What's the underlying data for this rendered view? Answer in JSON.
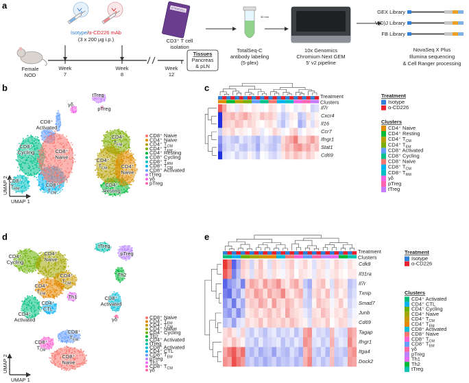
{
  "panel_labels": {
    "a": "a",
    "b": "b",
    "c": "c",
    "d": "d",
    "e": "e"
  },
  "panel_a": {
    "treatment_label": {
      "isotype": "Isotype",
      "sep": "/",
      "anti": "α-CD226 mAb"
    },
    "dose": "(3 x 200 µg i.p.)",
    "mouse": [
      "Female",
      "NOD"
    ],
    "weeks": [
      [
        "Week",
        "7"
      ],
      [
        "Week",
        "8"
      ],
      [
        "Week",
        "12"
      ]
    ],
    "kit_brand": "STEMCELL",
    "isolation": [
      "CD3⁺ T cell",
      "isolation"
    ],
    "tissues": {
      "title": "Tissues",
      "lines": [
        "Pancreas",
        "& pLN"
      ]
    },
    "tube_label": "30 min",
    "labeling": [
      "TotalSeq-C",
      "antibody labeling",
      "(5-plex)"
    ],
    "pipeline": [
      "10x Genomics",
      "Chromium Next GEM",
      "5′ v2 pipeline"
    ],
    "libraries": [
      "GEX Library",
      "V(D)J Library",
      "FB Library"
    ],
    "sequencing": [
      "NovaSeq X Plus",
      "Illumina sequencing",
      "& Cell Ranger processing"
    ]
  },
  "umap_b": {
    "x_label": "UMAP 1",
    "y_label": "UMAP 2",
    "clusters": [
      {
        "name": "CD8⁺ Naive",
        "color": "#F8766D"
      },
      {
        "name": "CD4⁺ Naive",
        "color": "#DE8C00"
      },
      {
        "name": "CD4⁺ T",
        "sub": "CM",
        "color": "#B79F00"
      },
      {
        "name": "CD4⁺ T",
        "sub": "EM",
        "color": "#7CAE00"
      },
      {
        "name": "CD4⁺ Resting",
        "color": "#00BA38"
      },
      {
        "name": "CD8⁺ Cycling",
        "color": "#00C08B"
      },
      {
        "name": "CD8⁺ T",
        "sub": "RM",
        "color": "#00BFC4"
      },
      {
        "name": "CD8⁺ T",
        "sub": "CM",
        "color": "#00B4F0"
      },
      {
        "name": "CD8⁺ Activated",
        "color": "#619CFF"
      },
      {
        "name": "tTreg",
        "color": "#C77CFF"
      },
      {
        "name": "γδ",
        "color": "#F564E3"
      },
      {
        "name": "pTreg",
        "color": "#FF64B0"
      }
    ],
    "plot_labels": [
      {
        "l1": "γδ"
      },
      {
        "l1": "tTreg"
      },
      {
        "l1": "pTreg"
      },
      {
        "l1": "CD8⁺",
        "l2": "Activated"
      },
      {
        "l1": "CD8⁺",
        "l2": "Cycling"
      },
      {
        "l1": "CD8⁺",
        "l2": "Naive"
      },
      {
        "l1": "CD8⁺",
        "l2": "T",
        "sub": "RM"
      },
      {
        "l1": "CD8⁺",
        "l2": "T",
        "sub": "CM"
      },
      {
        "l1": "CD4⁺",
        "l2": "T",
        "sub": "EM"
      },
      {
        "l1": "CD4⁺",
        "l2": "T",
        "sub": "CM"
      },
      {
        "l1": "CD4⁺",
        "l2": "Naive"
      },
      {
        "l1": "CD4⁺",
        "l2": "Resting"
      }
    ]
  },
  "heatmap_c": {
    "annotation_labels": [
      "Treatment",
      "Clusters"
    ],
    "treatment_title": "Treatment",
    "clusters_title": "Clusters",
    "treatments": [
      {
        "name": "Isotype",
        "color": "#2f80d8"
      },
      {
        "name": "α-CD226",
        "color": "#e8232d"
      }
    ],
    "clusters": [
      {
        "name": "CD4⁺ Naive",
        "color": "#DE8C00"
      },
      {
        "name": "CD4⁺ Resting",
        "color": "#00BA38"
      },
      {
        "name": "CD4⁺ T",
        "sub": "CM",
        "color": "#B79F00"
      },
      {
        "name": "CD4⁺ T",
        "sub": "EM",
        "color": "#7CAE00"
      },
      {
        "name": "CD8⁺ Activated",
        "color": "#619CFF"
      },
      {
        "name": "CD8⁺ Cycling",
        "color": "#00C08B"
      },
      {
        "name": "CD8⁺ Naive",
        "color": "#F8766D"
      },
      {
        "name": "CD8⁺ T",
        "sub": "CM",
        "color": "#00B4F0"
      },
      {
        "name": "CD8⁺ T",
        "sub": "RM",
        "color": "#00BFC4"
      },
      {
        "name": "γδ",
        "color": "#F564E3"
      },
      {
        "name": "pTreg",
        "color": "#FF64B0"
      },
      {
        "name": "tTreg",
        "color": "#C77CFF"
      }
    ],
    "genes": [
      "Il7r",
      "Cxcr4",
      "Il16",
      "Ccr7",
      "Ifngr1",
      "Stat1",
      "Cd69"
    ],
    "column_treatment": [
      0,
      1,
      0,
      1,
      0,
      1,
      0,
      1,
      0,
      1,
      0,
      1,
      0,
      1,
      0,
      1,
      0,
      1,
      0,
      1,
      0,
      1,
      0,
      1
    ],
    "column_cluster": [
      0,
      0,
      1,
      1,
      2,
      2,
      3,
      3,
      4,
      4,
      5,
      5,
      6,
      6,
      7,
      7,
      8,
      8,
      9,
      9,
      10,
      10,
      11,
      11
    ],
    "zlim": [
      -2,
      2
    ],
    "low_color": "#1f2fe0",
    "mid_color": "#ffffff",
    "high_color": "#e8231f",
    "values": [
      [
        1.5,
        0.8,
        0.2,
        0.1,
        -0.2,
        0.3,
        0.1,
        0,
        0.2,
        0.1,
        -0.1,
        0,
        0.3,
        0.2,
        0,
        -0.3,
        0.1,
        0,
        -0.2,
        -0.1,
        0.2,
        0,
        -0.4,
        -0.3
      ],
      [
        -2,
        0.6,
        0.5,
        0.7,
        0.4,
        0.6,
        0.8,
        0.5,
        0.3,
        0.2,
        0.6,
        0.4,
        0.5,
        0.3,
        -0.2,
        -0.5,
        -0.3,
        0.2,
        0.1,
        -0.6,
        -0.4,
        0.3,
        -0.2,
        0.1
      ],
      [
        -2,
        0.5,
        0.4,
        0.3,
        0.6,
        0.5,
        0.2,
        0.4,
        0.3,
        0.1,
        0,
        0.2,
        0.3,
        0.1,
        -0.3,
        -0.6,
        -0.2,
        0.1,
        0,
        -0.8,
        -0.5,
        0.1,
        -0.3,
        0.2
      ],
      [
        -0.5,
        0.3,
        0.2,
        0.4,
        0.1,
        0.2,
        0.1,
        0,
        0.3,
        0.2,
        -0.2,
        0,
        0.1,
        0.4,
        0.2,
        -0.1,
        0,
        0.3,
        0.5,
        -0.2,
        0,
        0.2,
        0.1,
        0
      ],
      [
        -1,
        -0.4,
        -0.3,
        -0.5,
        -0.6,
        -0.2,
        -0.4,
        -0.3,
        -0.5,
        -0.7,
        -0.3,
        -0.2,
        -0.4,
        -0.6,
        -0.5,
        0.3,
        0.6,
        0.8,
        1.2,
        0.4,
        0.3,
        0.6,
        0.9,
        0.5
      ],
      [
        -1.2,
        -0.5,
        -0.3,
        -0.4,
        -0.2,
        -0.5,
        -0.6,
        -0.3,
        -0.4,
        -0.8,
        -0.2,
        -0.3,
        -0.5,
        -0.6,
        -0.3,
        0.4,
        0.7,
        0.5,
        0.9,
        1,
        0.6,
        0.8,
        0.4,
        0.6
      ],
      [
        -2,
        -0.3,
        -0.2,
        -0.1,
        -0.4,
        -0.2,
        -0.3,
        0.1,
        -0.2,
        -0.5,
        0,
        -0.1,
        -0.3,
        -0.4,
        -0.2,
        0.2,
        0.5,
        0.3,
        0.6,
        0.4,
        0.2,
        0.5,
        0.3,
        0.1
      ]
    ]
  },
  "umap_d": {
    "x_label": "UMAP 1",
    "y_label": "UMAP 2",
    "clusters": [
      {
        "name": "CD8⁺ Naive",
        "color": "#F8766D"
      },
      {
        "name": "CD4⁺ T",
        "sub": "EM",
        "color": "#E58700"
      },
      {
        "name": "CD4⁺ T",
        "sub": "CM",
        "color": "#C99800"
      },
      {
        "name": "CD4⁺ Naive",
        "color": "#A3A500"
      },
      {
        "name": "CD4⁺ Cycling",
        "color": "#6BB100"
      },
      {
        "name": "Th2",
        "color": "#00BA38"
      },
      {
        "name": "CD4⁺ Activated",
        "color": "#00BF7D"
      },
      {
        "name": "tTreg",
        "color": "#00C0AF"
      },
      {
        "name": "CD8⁺ Activated",
        "color": "#00BCD8"
      },
      {
        "name": "CD4⁺ CTL",
        "color": "#00B0F6"
      },
      {
        "name": "CD8⁺ T",
        "sub": "EM",
        "color": "#619CFF"
      },
      {
        "name": "pTreg",
        "color": "#B983FF"
      },
      {
        "name": "Th1",
        "color": "#E76BF3"
      },
      {
        "name": "CD8⁺ T",
        "sub": "CM",
        "color": "#FD61D1"
      },
      {
        "name": "γδ",
        "color": "#FF67A4"
      }
    ],
    "plot_labels": [
      {
        "l1": "CD4⁺",
        "l2": "Cycling"
      },
      {
        "l1": "CD4⁺",
        "l2": "Naive"
      },
      {
        "l1": "CD4⁺",
        "l2": "T",
        "sub": "CM"
      },
      {
        "l1": "CD4⁺",
        "l2": "T",
        "sub": "EM"
      },
      {
        "l1": "Th1"
      },
      {
        "l1": "CD4⁺",
        "l2": "CTL"
      },
      {
        "l1": "CD4⁺",
        "l2": "Activated"
      },
      {
        "l1": "tTreg"
      },
      {
        "l1": "pTreg"
      },
      {
        "l1": "Th2"
      },
      {
        "l1": "CD8⁺",
        "l2": "Activated"
      },
      {
        "l1": "γδ"
      },
      {
        "l1": "CD8⁺",
        "l2": "T",
        "sub": "EM"
      },
      {
        "l1": "CD8⁺",
        "l2": "T",
        "sub": "CM"
      },
      {
        "l1": "CD8⁺",
        "l2": "Naive"
      }
    ]
  },
  "heatmap_e": {
    "annotation_labels": [
      "Treatment",
      "Clusters"
    ],
    "treatment_title": "Treatment",
    "clusters_title": "Clusters",
    "treatments": [
      {
        "name": "Isotype",
        "color": "#2f80d8"
      },
      {
        "name": "α-CD226",
        "color": "#e8232d"
      }
    ],
    "clusters": [
      {
        "name": "CD4⁺ Activated",
        "color": "#00BF7D"
      },
      {
        "name": "CD4⁺ CTL",
        "color": "#00B0F6"
      },
      {
        "name": "CD4⁺ Cycling",
        "color": "#6BB100"
      },
      {
        "name": "CD4⁺ Naive",
        "color": "#A3A500"
      },
      {
        "name": "CD4⁺ T",
        "sub": "CM",
        "color": "#C99800"
      },
      {
        "name": "CD4⁺ T",
        "sub": "EM",
        "color": "#E58700"
      },
      {
        "name": "CD8⁺ Activated",
        "color": "#00BCD8"
      },
      {
        "name": "CD8⁺ Naive",
        "color": "#F8766D"
      },
      {
        "name": "CD8⁺ T",
        "sub": "CM",
        "color": "#FD61D1"
      },
      {
        "name": "CD8⁺ T",
        "sub": "EM",
        "color": "#619CFF"
      },
      {
        "name": "γδ",
        "color": "#FF67A4"
      },
      {
        "name": "pTreg",
        "color": "#B983FF"
      },
      {
        "name": "Th1",
        "color": "#E76BF3"
      },
      {
        "name": "Th2",
        "color": "#00BA38"
      },
      {
        "name": "tTreg",
        "color": "#00C0AF"
      }
    ],
    "genes": [
      "Cdk8",
      "Il31ra",
      "Il7r",
      "Txnip",
      "Smad7",
      "Junb",
      "Cd69",
      "Tagap",
      "Ifngr1",
      "Itga4",
      "Dock2"
    ],
    "column_treatment": [
      0,
      1,
      0,
      1,
      0,
      1,
      0,
      1,
      0,
      1,
      0,
      1,
      0,
      1,
      0,
      1,
      0,
      1,
      0,
      1,
      0,
      1,
      0,
      1,
      0,
      1,
      0,
      1,
      0,
      1
    ],
    "column_cluster": [
      0,
      0,
      1,
      1,
      2,
      2,
      3,
      3,
      4,
      4,
      5,
      5,
      6,
      6,
      7,
      7,
      8,
      8,
      9,
      9,
      10,
      10,
      11,
      11,
      12,
      12,
      13,
      13,
      14,
      14
    ],
    "zlim": [
      -2,
      2
    ],
    "low_color": "#1f2fe0",
    "mid_color": "#ffffff",
    "high_color": "#e8231f",
    "values": [
      [
        1.8,
        1.2,
        -1.5,
        -0.8,
        0.5,
        0.3,
        -0.4,
        0.2,
        0.6,
        0.1,
        -0.3,
        0.4,
        0.2,
        -0.2,
        0.3,
        0.5,
        -0.1,
        0.2,
        0.4,
        0.1,
        -0.3,
        0.2,
        0.3,
        -0.2,
        0.1,
        0.4,
        0.2,
        -0.1,
        0.3,
        0.1
      ],
      [
        1.5,
        1,
        -1.2,
        -0.6,
        0.4,
        0.2,
        -0.3,
        0.3,
        0.5,
        0.2,
        -0.2,
        0.3,
        0.1,
        -0.1,
        0.2,
        0.4,
        0,
        0.3,
        0.2,
        0.1,
        -0.2,
        0.3,
        0.2,
        -0.1,
        0.2,
        0.3,
        0.1,
        0,
        0.2,
        0.2
      ],
      [
        -1.5,
        -1,
        -0.8,
        -0.5,
        -1.2,
        0.4,
        0.8,
        0.6,
        0.3,
        0.9,
        0.5,
        0.7,
        1,
        0.4,
        0.2,
        0.6,
        0.8,
        0.3,
        -0.5,
        -0.8,
        0.2,
        0.4,
        0.6,
        0.1,
        -0.3,
        0.5,
        0.3,
        0.2,
        -0.6,
        -0.4
      ],
      [
        -1.2,
        -1.4,
        -0.6,
        -0.9,
        -0.3,
        0.6,
        0.4,
        0.9,
        0.7,
        0.3,
        0.8,
        0.5,
        0.6,
        1.1,
        0.4,
        0.2,
        0.5,
        0.7,
        -0.3,
        -0.6,
        0.3,
        0.5,
        0.2,
        0.6,
        -0.2,
        0.4,
        0.1,
        0.3,
        -0.5,
        -0.3
      ],
      [
        -1,
        -0.6,
        -1.3,
        -0.4,
        -0.8,
        0.3,
        0.5,
        0.4,
        0.8,
        0.6,
        0.2,
        0.9,
        0.4,
        0.3,
        0.7,
        0.5,
        0.2,
        0.4,
        -0.4,
        -0.5,
        0.1,
        0.6,
        0.4,
        0.3,
        -0.1,
        0.2,
        0.5,
        0.1,
        -0.4,
        -0.2
      ],
      [
        -0.8,
        -1,
        -0.5,
        -1.1,
        -0.6,
        0.2,
        0.3,
        0.5,
        0.2,
        0.4,
        0.6,
        0.3,
        0.5,
        0.2,
        0.8,
        0.4,
        0.3,
        0.2,
        -0.2,
        -0.4,
        0.3,
        0.2,
        0.6,
        0.4,
        0.1,
        0.3,
        0.2,
        0.4,
        -0.3,
        -0.1
      ],
      [
        -0.6,
        -0.4,
        -0.9,
        -0.3,
        -0.2,
        0.4,
        0.2,
        0.3,
        0.6,
        0.2,
        0.5,
        0.4,
        0.3,
        0.5,
        0.3,
        0.6,
        0.4,
        0.2,
        0.1,
        -0.3,
        0.4,
        0.3,
        0.2,
        0.5,
        0,
        0.2,
        0.4,
        0.3,
        -0.2,
        0.1
      ],
      [
        0.3,
        0.5,
        0.2,
        -0.2,
        0.4,
        -0.3,
        -0.5,
        -0.2,
        -0.4,
        -0.6,
        -0.3,
        -0.2,
        -0.5,
        -0.3,
        -0.4,
        -0.2,
        -0.6,
        -0.3,
        0.8,
        1,
        -0.2,
        -0.4,
        -0.3,
        -0.5,
        0.6,
        -0.2,
        -0.3,
        -0.4,
        0.9,
        0.7
      ],
      [
        0.4,
        0.2,
        0.6,
        0.3,
        0.1,
        -0.4,
        -0.3,
        -0.6,
        -0.2,
        -0.5,
        -0.4,
        -0.3,
        -0.2,
        -0.6,
        -0.3,
        -0.5,
        -0.2,
        -0.4,
        1,
        0.8,
        -0.3,
        -0.2,
        -0.5,
        -0.3,
        0.7,
        -0.4,
        -0.2,
        -0.3,
        1.1,
        0.6
      ],
      [
        0.8,
        1.2,
        1.5,
        0.9,
        1.3,
        -0.5,
        -0.7,
        -0.4,
        -0.8,
        -0.6,
        -0.5,
        -0.9,
        -0.4,
        -0.6,
        -0.7,
        -0.3,
        -0.5,
        -0.8,
        0.6,
        0.9,
        -0.4,
        -0.6,
        -0.3,
        -0.7,
        0.5,
        -0.5,
        -0.4,
        -0.6,
        0.8,
        1
      ],
      [
        1,
        0.8,
        1.6,
        1.2,
        0.9,
        -0.6,
        -0.4,
        -0.7,
        -0.5,
        -0.8,
        -0.6,
        -0.4,
        -0.7,
        -0.5,
        -0.6,
        -0.4,
        -0.7,
        -0.5,
        0.7,
        1.1,
        -0.5,
        -0.3,
        -0.6,
        -0.4,
        0.6,
        -0.6,
        -0.5,
        -0.3,
        0.9,
        0.8
      ]
    ]
  }
}
